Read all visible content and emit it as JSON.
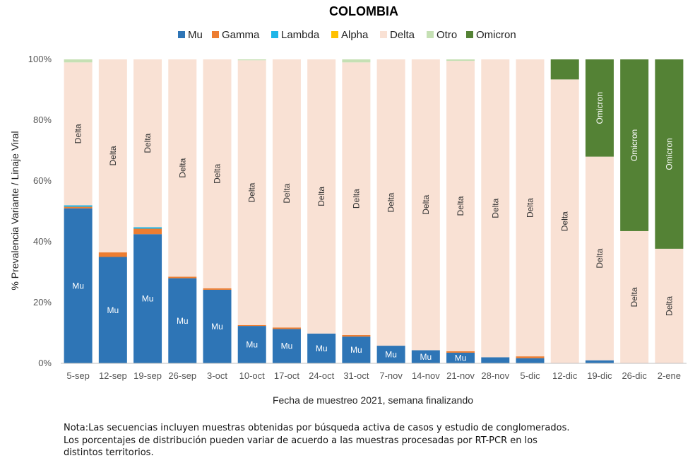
{
  "chart_data": {
    "type": "bar",
    "stacked": true,
    "title": "COLOMBIA",
    "xlabel": "Fecha de muestreo 2021, semana finalizando",
    "ylabel": "% Prevalencia Variante / Linaje Viral",
    "ylim": [
      0,
      100
    ],
    "yticks": [
      "0%",
      "20%",
      "40%",
      "60%",
      "80%",
      "100%"
    ],
    "legend_position": "top",
    "grid": false,
    "categories": [
      "5-sep",
      "12-sep",
      "19-sep",
      "26-sep",
      "3-oct",
      "10-oct",
      "17-oct",
      "24-oct",
      "31-oct",
      "7-nov",
      "14-nov",
      "21-nov",
      "28-nov",
      "5-dic",
      "12-dic",
      "19-dic",
      "26-dic",
      "2-ene"
    ],
    "series": [
      {
        "name": "Mu",
        "color": "#2E75B6",
        "label": "Mu",
        "values": [
          51,
          35,
          42.5,
          28,
          24.2,
          12.3,
          11.3,
          9.8,
          8.8,
          5.8,
          4.3,
          3.5,
          2,
          1.7,
          0,
          1,
          0,
          0
        ]
      },
      {
        "name": "Gamma",
        "color": "#ED7D31",
        "label": "",
        "values": [
          0.5,
          1.5,
          1.8,
          0.5,
          0.5,
          0.3,
          0.5,
          0,
          0.5,
          0,
          0,
          0.5,
          0,
          0.6,
          0,
          0,
          0,
          0
        ]
      },
      {
        "name": "Lambda",
        "color": "#1FB5E8",
        "label": "",
        "values": [
          0.5,
          0,
          0.5,
          0,
          0,
          0,
          0,
          0,
          0,
          0,
          0,
          0,
          0,
          0,
          0,
          0,
          0,
          0
        ]
      },
      {
        "name": "Alpha",
        "color": "#FFC000",
        "label": "",
        "values": [
          0,
          0,
          0,
          0,
          0,
          0,
          0,
          0,
          0,
          0,
          0,
          0,
          0,
          0,
          0,
          0,
          0,
          0
        ]
      },
      {
        "name": "Delta",
        "color": "#F9E1D4",
        "label": "Delta",
        "values": [
          47,
          63.5,
          55.2,
          71.5,
          75.3,
          87.1,
          88.2,
          90.2,
          89.7,
          94.2,
          95.7,
          95.5,
          98,
          97.7,
          93.4,
          67,
          43.5,
          37.7
        ]
      },
      {
        "name": "Otro",
        "color": "#C5E0B4",
        "label": "",
        "values": [
          1,
          0,
          0,
          0,
          0,
          0.3,
          0,
          0,
          1,
          0,
          0,
          0.5,
          0,
          0,
          0,
          0,
          0,
          0
        ]
      },
      {
        "name": "Omicron",
        "color": "#548235",
        "label": "Omicron",
        "values": [
          0,
          0,
          0,
          0,
          0,
          0,
          0,
          0,
          0,
          0,
          0,
          0,
          0,
          0,
          6.6,
          32,
          56.5,
          62.3
        ]
      }
    ],
    "segment_labels_shown": {
      "Mu": [
        true,
        true,
        true,
        true,
        true,
        true,
        true,
        true,
        true,
        true,
        true,
        true,
        false,
        false,
        false,
        false,
        false,
        false
      ],
      "Delta": [
        true,
        true,
        true,
        true,
        true,
        true,
        true,
        true,
        true,
        true,
        true,
        true,
        true,
        true,
        true,
        true,
        true,
        true
      ],
      "Omicron": [
        false,
        false,
        false,
        false,
        false,
        false,
        false,
        false,
        false,
        false,
        false,
        false,
        false,
        false,
        false,
        true,
        true,
        true
      ]
    }
  },
  "note": "Nota:Las secuencias incluyen muestras obtenidas por búsqueda activa de casos y estudio de conglomerados.\nLos porcentajes de distribución pueden variar de acuerdo a las muestras procesadas por RT-PCR en los\ndistintos territorios."
}
